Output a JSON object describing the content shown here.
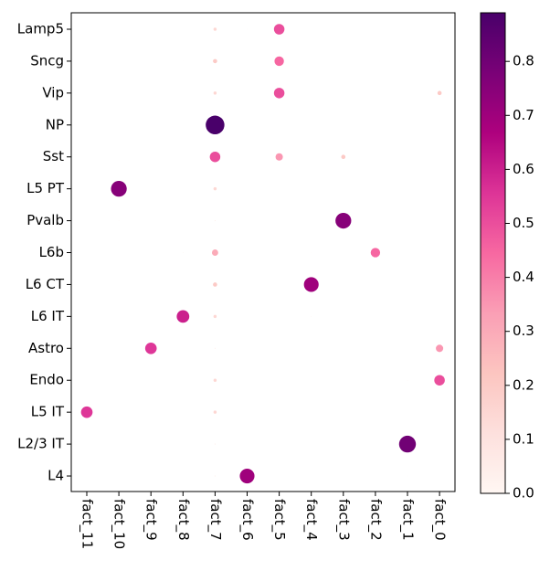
{
  "chart_data": {
    "type": "dotplot",
    "x_categories": [
      "fact_11",
      "fact_10",
      "fact_9",
      "fact_8",
      "fact_7",
      "fact_6",
      "fact_5",
      "fact_4",
      "fact_3",
      "fact_2",
      "fact_1",
      "fact_0"
    ],
    "y_categories": [
      "Lamp5",
      "Sncg",
      "Vip",
      "NP",
      "Sst",
      "L5 PT",
      "Pvalb",
      "L6b",
      "L6 CT",
      "L6 IT",
      "Astro",
      "Endo",
      "L5 IT",
      "L2/3 IT",
      "L4"
    ],
    "values": [
      [
        0,
        0,
        0,
        0,
        0.15,
        0.02,
        0.5,
        0,
        0,
        0,
        0.02,
        0
      ],
      [
        0,
        0,
        0,
        0.02,
        0.2,
        0,
        0.45,
        0,
        0,
        0,
        0,
        0.03
      ],
      [
        0,
        0,
        0,
        0,
        0.15,
        0,
        0.5,
        0,
        0,
        0,
        0,
        0.2
      ],
      [
        0,
        0,
        0,
        0,
        0.89,
        0,
        0,
        0,
        0,
        0,
        0,
        0
      ],
      [
        0,
        0,
        0,
        0,
        0.5,
        0,
        0.35,
        0,
        0.2,
        0,
        0,
        0
      ],
      [
        0,
        0.75,
        0,
        0,
        0.15,
        0,
        0,
        0,
        0,
        0,
        0,
        0
      ],
      [
        0,
        0.03,
        0,
        0,
        0.05,
        0,
        0,
        0,
        0.75,
        0,
        0,
        0
      ],
      [
        0,
        0,
        0,
        0.03,
        0.3,
        0,
        0,
        0.02,
        0,
        0.45,
        0,
        0
      ],
      [
        0,
        0,
        0,
        0,
        0.2,
        0,
        0,
        0.7,
        0,
        0,
        0,
        0
      ],
      [
        0,
        0,
        0,
        0.6,
        0.15,
        0,
        0,
        0.03,
        0,
        0,
        0,
        0
      ],
      [
        0,
        0,
        0.55,
        0,
        0.05,
        0,
        0,
        0,
        0,
        0,
        0,
        0.35
      ],
      [
        0,
        0,
        0,
        0,
        0.15,
        0,
        0,
        0,
        0,
        0,
        0.03,
        0.5
      ],
      [
        0.55,
        0,
        0,
        0,
        0.15,
        0,
        0,
        0,
        0,
        0,
        0,
        0
      ],
      [
        0,
        0,
        0,
        0,
        0.05,
        0,
        0,
        0,
        0,
        0,
        0.8,
        0
      ],
      [
        0,
        0,
        0,
        0,
        0.05,
        0.7,
        0,
        0,
        0,
        0,
        0.03,
        0
      ]
    ],
    "colorscale": [
      "#fff7f3",
      "#fde0dd",
      "#fcc5c0",
      "#fa9fb5",
      "#f768a1",
      "#dd3497",
      "#ae017e",
      "#7a0177",
      "#49006a"
    ],
    "clim": [
      0,
      0.89
    ],
    "cticks": [
      {
        "value": 0,
        "label": "0.0"
      },
      0.1,
      0.2,
      0.3,
      0.4,
      0.5,
      0.6,
      0.7,
      0.8
    ]
  }
}
